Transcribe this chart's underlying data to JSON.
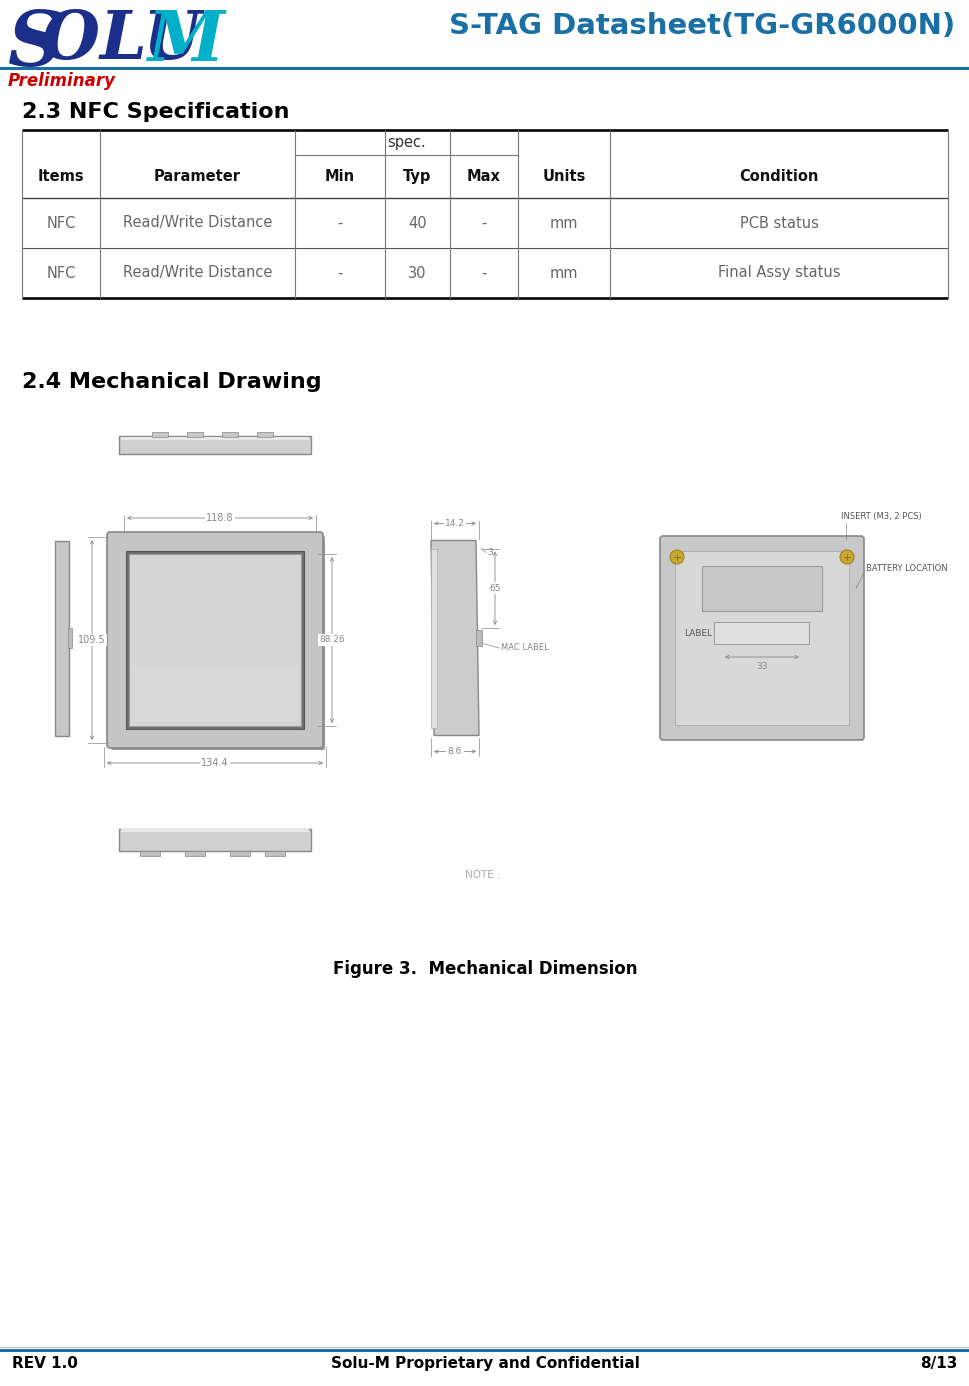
{
  "title": "S-TAG Datasheet(TG-GR6000N)",
  "preliminary": "Preliminary",
  "section_nfc": "2.3 NFC Specification",
  "section_mech": "2.4 Mechanical Drawing",
  "figure_caption": "Figure 3.  Mechanical Dimension",
  "footer_left": "REV 1.0",
  "footer_center": "Solu-M Proprietary and Confidential",
  "footer_right": "8/13",
  "table_rows": [
    [
      "NFC",
      "Read/Write Distance",
      "-",
      "40",
      "-",
      "mm",
      "PCB status"
    ],
    [
      "NFC",
      "Read/Write Distance",
      "-",
      "30",
      "-",
      "mm",
      "Final Assy status"
    ]
  ],
  "title_color": "#1a6fa5",
  "preliminary_color": "#cc0000",
  "logo_dark_color": "#1a2e8a",
  "logo_teal_color": "#00afc8",
  "header_line_color": "#1a6fa5",
  "dim_color": "#888888",
  "dim_text_color": "#888888",
  "draw_outer_color": "#aaaaaa",
  "draw_mid_color": "#c0c0c0",
  "draw_inner_color": "#d0d0d0",
  "draw_screen_color": "#c8c8c8"
}
